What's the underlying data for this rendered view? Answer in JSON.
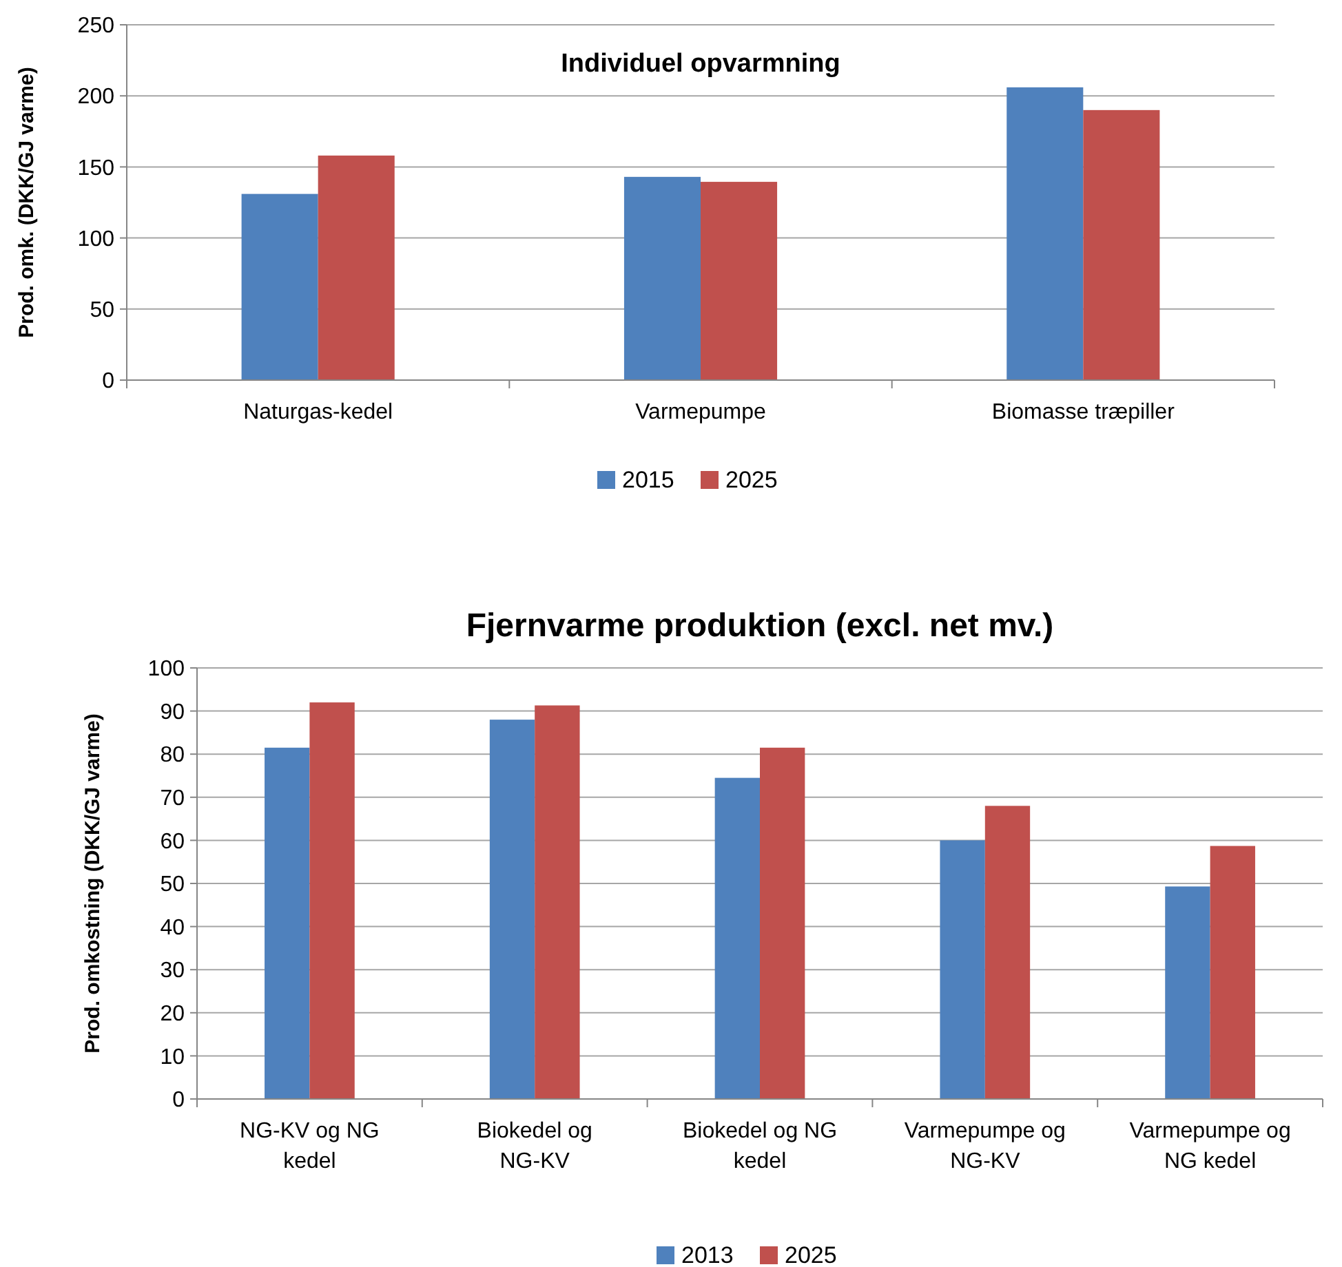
{
  "chart_data": [
    {
      "type": "bar",
      "title": "Individuel opvarmning",
      "ylabel": "Prod. omk. (DKK/GJ varme)",
      "categories": [
        "Naturgas-kedel",
        "Varmepumpe",
        "Biomasse træpiller"
      ],
      "series": [
        {
          "name": "2015",
          "color": "#4f81bd",
          "values": [
            131,
            143,
            206
          ]
        },
        {
          "name": "2025",
          "color": "#c0504d",
          "values": [
            158,
            139.5,
            190
          ]
        }
      ],
      "ylim": [
        0,
        250
      ],
      "yticks": [
        0,
        50,
        100,
        150,
        200,
        250
      ],
      "grid": "y",
      "legend": "bottom"
    },
    {
      "type": "bar",
      "title": "Fjernvarme produktion (excl. net mv.)",
      "ylabel": "Prod. omkostning (DKK/GJ varme)",
      "categories": [
        "NG-KV og NG kedel",
        "Biokedel og NG-KV",
        "Biokedel og NG kedel",
        "Varmepumpe og NG-KV",
        "Varmepumpe og NG kedel"
      ],
      "series": [
        {
          "name": "2013",
          "color": "#4f81bd",
          "values": [
            81.5,
            88,
            74.5,
            60,
            49.3
          ]
        },
        {
          "name": "2025",
          "color": "#c0504d",
          "values": [
            92,
            91.3,
            81.5,
            68,
            58.7
          ]
        }
      ],
      "ylim": [
        0,
        100
      ],
      "yticks": [
        0,
        10,
        20,
        30,
        40,
        50,
        60,
        70,
        80,
        90,
        100
      ],
      "grid": "y",
      "legend": "bottom"
    }
  ]
}
